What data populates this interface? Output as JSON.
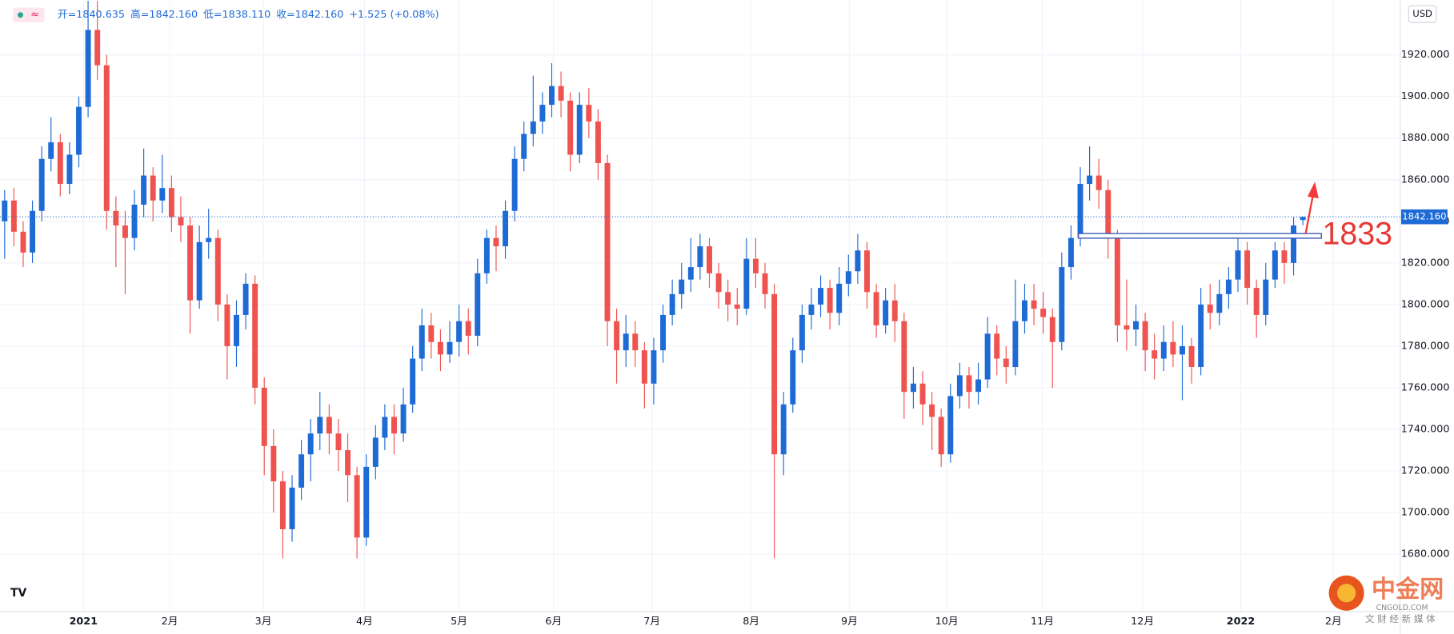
{
  "chart_data": {
    "type": "candlestick",
    "info": [
      "开=1840.635",
      "高=1842.160",
      "低=1838.110",
      "收=1842.160",
      "+1.525 (+0.08%)"
    ],
    "currency": "USD",
    "up_color": "#1e6bd6",
    "down_color": "#ef5350",
    "open": [
      1840,
      1850,
      1835,
      1825,
      1845,
      1870,
      1878,
      1858,
      1872,
      1895,
      1932,
      1915,
      1845,
      1838,
      1832,
      1848,
      1862,
      1850,
      1856,
      1842,
      1838,
      1802,
      1830,
      1832,
      1800,
      1780,
      1795,
      1810,
      1760,
      1732,
      1715,
      1692,
      1712,
      1728,
      1738,
      1746,
      1738,
      1730,
      1718,
      1688,
      1722,
      1736,
      1746,
      1738,
      1752,
      1774,
      1790,
      1782,
      1776,
      1782,
      1792,
      1785,
      1815,
      1832,
      1828,
      1845,
      1870,
      1882,
      1888,
      1896,
      1905,
      1898,
      1872,
      1896,
      1888,
      1868,
      1792,
      1778,
      1786,
      1778,
      1762,
      1778,
      1795,
      1805,
      1812,
      1818,
      1828,
      1815,
      1806,
      1800,
      1798,
      1822,
      1815,
      1805,
      1728,
      1752,
      1778,
      1795,
      1800,
      1808,
      1796,
      1810,
      1816,
      1826,
      1806,
      1790,
      1802,
      1792,
      1758,
      1762,
      1752,
      1746,
      1728,
      1756,
      1766,
      1758,
      1764,
      1786,
      1774,
      1770,
      1792,
      1802,
      1798,
      1794,
      1782,
      1818,
      1832,
      1858,
      1862,
      1855,
      1832,
      1790,
      1788,
      1792,
      1778,
      1774,
      1782,
      1776,
      1780,
      1770,
      1800,
      1796,
      1805,
      1812,
      1826,
      1808,
      1795,
      1812,
      1826,
      1820,
      1840.635
    ],
    "high": [
      1855,
      1856,
      1840,
      1850,
      1876,
      1890,
      1882,
      1878,
      1900,
      1946,
      1946,
      1920,
      1852,
      1845,
      1855,
      1875,
      1866,
      1872,
      1862,
      1852,
      1842,
      1838,
      1846,
      1836,
      1805,
      1802,
      1815,
      1814,
      1765,
      1740,
      1720,
      1718,
      1735,
      1745,
      1758,
      1752,
      1745,
      1738,
      1722,
      1728,
      1742,
      1752,
      1752,
      1760,
      1780,
      1798,
      1796,
      1788,
      1792,
      1800,
      1798,
      1822,
      1836,
      1838,
      1850,
      1876,
      1888,
      1910,
      1902,
      1916,
      1912,
      1902,
      1902,
      1904,
      1894,
      1872,
      1798,
      1795,
      1792,
      1782,
      1784,
      1800,
      1812,
      1820,
      1832,
      1834,
      1832,
      1820,
      1812,
      1808,
      1832,
      1832,
      1820,
      1810,
      1758,
      1784,
      1800,
      1808,
      1814,
      1812,
      1818,
      1824,
      1834,
      1830,
      1810,
      1808,
      1810,
      1796,
      1770,
      1768,
      1758,
      1750,
      1762,
      1772,
      1770,
      1772,
      1794,
      1790,
      1780,
      1812,
      1810,
      1810,
      1806,
      1798,
      1825,
      1838,
      1866,
      1876,
      1870,
      1860,
      1836,
      1812,
      1800,
      1796,
      1786,
      1790,
      1792,
      1790,
      1784,
      1808,
      1810,
      1812,
      1818,
      1832,
      1830,
      1812,
      1820,
      1830,
      1830,
      1842,
      1842.16
    ],
    "low": [
      1822,
      1828,
      1818,
      1820,
      1840,
      1864,
      1852,
      1853,
      1866,
      1890,
      1908,
      1836,
      1818,
      1805,
      1826,
      1842,
      1840,
      1844,
      1835,
      1830,
      1786,
      1798,
      1822,
      1792,
      1764,
      1770,
      1788,
      1752,
      1718,
      1700,
      1678,
      1686,
      1706,
      1715,
      1730,
      1728,
      1720,
      1705,
      1678,
      1684,
      1716,
      1730,
      1728,
      1734,
      1748,
      1768,
      1774,
      1768,
      1772,
      1775,
      1776,
      1780,
      1810,
      1816,
      1822,
      1840,
      1864,
      1876,
      1882,
      1890,
      1890,
      1864,
      1868,
      1880,
      1860,
      1780,
      1762,
      1770,
      1770,
      1750,
      1752,
      1772,
      1790,
      1798,
      1806,
      1812,
      1808,
      1798,
      1792,
      1790,
      1795,
      1808,
      1798,
      1678,
      1718,
      1748,
      1772,
      1788,
      1794,
      1788,
      1790,
      1804,
      1810,
      1798,
      1784,
      1786,
      1782,
      1745,
      1750,
      1742,
      1730,
      1722,
      1724,
      1750,
      1750,
      1752,
      1760,
      1766,
      1762,
      1766,
      1786,
      1790,
      1786,
      1760,
      1778,
      1812,
      1828,
      1850,
      1846,
      1822,
      1782,
      1778,
      1780,
      1768,
      1764,
      1768,
      1770,
      1754,
      1762,
      1766,
      1788,
      1790,
      1798,
      1806,
      1800,
      1784,
      1790,
      1808,
      1810,
      1814,
      1838.11
    ],
    "close": [
      1850,
      1835,
      1825,
      1845,
      1870,
      1878,
      1858,
      1872,
      1895,
      1932,
      1915,
      1845,
      1838,
      1832,
      1848,
      1862,
      1850,
      1856,
      1842,
      1838,
      1802,
      1830,
      1832,
      1800,
      1780,
      1795,
      1810,
      1760,
      1732,
      1715,
      1692,
      1712,
      1728,
      1738,
      1746,
      1738,
      1730,
      1718,
      1688,
      1722,
      1736,
      1746,
      1738,
      1752,
      1774,
      1790,
      1782,
      1776,
      1782,
      1792,
      1785,
      1815,
      1832,
      1828,
      1845,
      1870,
      1882,
      1888,
      1896,
      1905,
      1898,
      1872,
      1896,
      1888,
      1868,
      1792,
      1778,
      1786,
      1778,
      1762,
      1778,
      1795,
      1805,
      1812,
      1818,
      1828,
      1815,
      1806,
      1800,
      1798,
      1822,
      1815,
      1805,
      1728,
      1752,
      1778,
      1795,
      1800,
      1808,
      1796,
      1810,
      1816,
      1826,
      1806,
      1790,
      1802,
      1792,
      1758,
      1762,
      1752,
      1746,
      1728,
      1756,
      1766,
      1758,
      1764,
      1786,
      1774,
      1770,
      1792,
      1802,
      1798,
      1794,
      1782,
      1818,
      1832,
      1858,
      1862,
      1855,
      1832,
      1790,
      1788,
      1792,
      1778,
      1774,
      1782,
      1776,
      1780,
      1770,
      1800,
      1796,
      1805,
      1812,
      1826,
      1808,
      1795,
      1812,
      1826,
      1820,
      1838,
      1842.16
    ],
    "xlim": [
      -0.5,
      150.5
    ],
    "ylim": [
      1652.4,
      1946.3
    ],
    "yticks": [
      {
        "value": 1680,
        "label": "1680.000"
      },
      {
        "value": 1700,
        "label": "1700.000"
      },
      {
        "value": 1720,
        "label": "1720.000"
      },
      {
        "value": 1740,
        "label": "1740.000"
      },
      {
        "value": 1760,
        "label": "1760.000"
      },
      {
        "value": 1780,
        "label": "1780.000"
      },
      {
        "value": 1800,
        "label": "1800.000"
      },
      {
        "value": 1820,
        "label": "1820.000"
      },
      {
        "value": 1840,
        "label": "1840.000"
      },
      {
        "value": 1860,
        "label": "1860.000"
      },
      {
        "value": 1880,
        "label": "1880.000"
      },
      {
        "value": 1900,
        "label": "1900.000"
      },
      {
        "value": 1920,
        "label": "1920.000"
      }
    ],
    "xticks": [
      {
        "value": 8.5,
        "label": "2021"
      },
      {
        "value": 17.8,
        "label": "2月"
      },
      {
        "value": 27.9,
        "label": "3月"
      },
      {
        "value": 38.8,
        "label": "4月"
      },
      {
        "value": 49,
        "label": "5月"
      },
      {
        "value": 59.2,
        "label": "6月"
      },
      {
        "value": 69.8,
        "label": "7月"
      },
      {
        "value": 80.5,
        "label": "8月"
      },
      {
        "value": 91.1,
        "label": "9月"
      },
      {
        "value": 101.6,
        "label": "10月"
      },
      {
        "value": 111.9,
        "label": "11月"
      },
      {
        "value": 122.7,
        "label": "12月"
      },
      {
        "value": 133.3,
        "label": "2022"
      },
      {
        "value": 143.3,
        "label": "2月"
      }
    ],
    "grid": true,
    "last_price": 1842.16,
    "last_price_label": "1842.160",
    "annotation_level": 1833,
    "watermark": {
      "brand": "中金网",
      "site": "CNGOLD.COM",
      "slogan": "文 财 经 新 媒 体"
    },
    "logo": "TV"
  }
}
